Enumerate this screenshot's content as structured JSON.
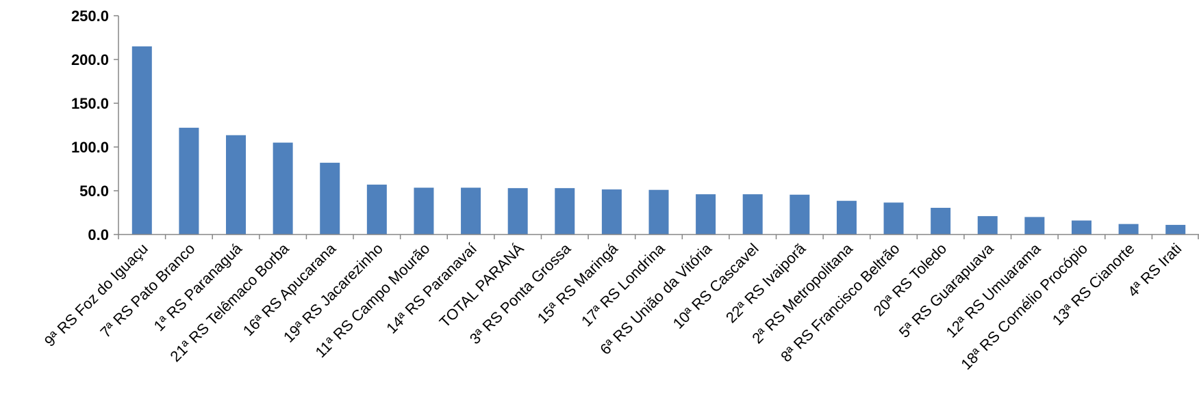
{
  "chart_data": {
    "type": "bar",
    "categories": [
      "9ª RS Foz do Iguaçu",
      "7ª RS Pato Branco",
      "1ª RS Paranaguá",
      "21ª RS Telêmaco Borba",
      "16ª RS Apucarana",
      "19ª RS Jacarezinho",
      "11ª RS Campo Mourão",
      "14ª RS Paranavaí",
      "TOTAL PARANÁ",
      "3ª RS Ponta Grossa",
      "15ª RS Maringá",
      "17ª RS Londrina",
      "6ª RS União da Vitória",
      "10ª RS Cascavel",
      "22ª RS Ivaiporã",
      "2ª RS Metropolitana",
      "8ª RS Francisco Beltrão",
      "20ª RS Toledo",
      "5ª RS Guarapuava",
      "12ª RS Umuarama",
      "18ª RS Cornélio Procópio",
      "13ª RS Cianorte",
      "4ª RS Irati"
    ],
    "values": [
      215,
      122,
      113.5,
      105,
      82,
      57,
      53.5,
      53.5,
      53,
      53,
      51.5,
      51,
      46,
      46,
      45.5,
      38.5,
      36.5,
      30.5,
      21,
      20,
      16,
      12,
      11
    ],
    "ylim": [
      0,
      250
    ],
    "yticks": [
      "0.0",
      "50.0",
      "100.0",
      "150.0",
      "200.0",
      "250.0"
    ],
    "bar_color": "#4F81BD",
    "grid": false,
    "title": "",
    "xlabel": "",
    "ylabel": ""
  }
}
